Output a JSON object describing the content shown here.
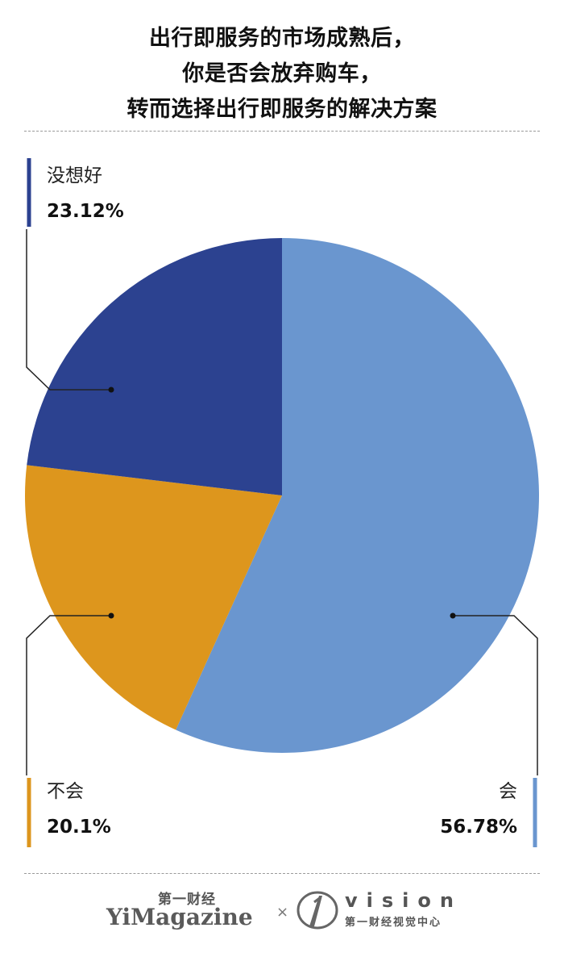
{
  "title_lines": [
    "出行即服务的市场成熟后，",
    "你是否会放弃购车，",
    "转而选择出行即服务的解决方案"
  ],
  "chart_data": {
    "type": "pie",
    "title": "出行即服务的市场成熟后，你是否会放弃购车，转而选择出行即服务的解决方案",
    "start": "12 o'clock",
    "direction": "clockwise",
    "slices": [
      {
        "label": "会",
        "value": 56.78,
        "display": "56.78%",
        "color": "#6a96cf"
      },
      {
        "label": "不会",
        "value": 20.1,
        "display": "20.1%",
        "color": "#dd961d"
      },
      {
        "label": "没想好",
        "value": 23.12,
        "display": "23.12%",
        "color": "#2c4290"
      }
    ]
  },
  "footer": {
    "brand_cn": "第一财经",
    "brand_en": "YiMagazine",
    "separator": "×",
    "vision_word": "vision",
    "vision_cn": "第一财经视觉中心"
  }
}
